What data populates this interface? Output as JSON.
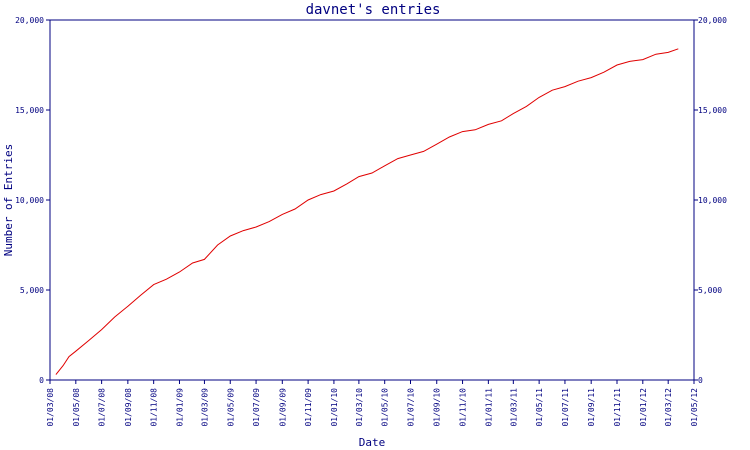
{
  "chart_data": {
    "type": "line",
    "title": "davnet's entries",
    "xlabel": "Date",
    "ylabel": "Number of Entries",
    "x_ticks": [
      "01/03/08",
      "01/05/08",
      "01/07/08",
      "01/09/08",
      "01/11/08",
      "01/01/09",
      "01/03/09",
      "01/05/09",
      "01/07/09",
      "01/09/09",
      "01/11/09",
      "01/01/10",
      "01/03/10",
      "01/05/10",
      "01/07/10",
      "01/09/10",
      "01/11/10",
      "01/01/11",
      "01/03/11",
      "01/05/11",
      "01/07/11",
      "01/09/11",
      "01/11/11",
      "01/01/12",
      "01/03/12",
      "01/05/12"
    ],
    "y_ticks": [
      "0",
      "5,000",
      "10,000",
      "15,000",
      "20,000"
    ],
    "ylim": [
      0,
      20000
    ],
    "grid": false,
    "legend": "none",
    "line_color": "#e00000",
    "series": [
      {
        "x": [
          "2008-03-15",
          "2008-04-01",
          "2008-04-15",
          "2008-05-01",
          "2008-06-01",
          "2008-07-01",
          "2008-08-01",
          "2008-09-01",
          "2008-10-01",
          "2008-11-01",
          "2008-12-01",
          "2009-01-01",
          "2009-02-01",
          "2009-03-01",
          "2009-04-01",
          "2009-05-01",
          "2009-06-01",
          "2009-07-01",
          "2009-08-01",
          "2009-09-01",
          "2009-10-01",
          "2009-11-01",
          "2009-12-01",
          "2010-01-01",
          "2010-02-01",
          "2010-03-01",
          "2010-04-01",
          "2010-05-01",
          "2010-06-01",
          "2010-07-01",
          "2010-08-01",
          "2010-09-01",
          "2010-10-01",
          "2010-11-01",
          "2010-12-01",
          "2011-01-01",
          "2011-02-01",
          "2011-03-01",
          "2011-04-01",
          "2011-05-01",
          "2011-06-01",
          "2011-07-01",
          "2011-08-01",
          "2011-09-01",
          "2011-10-01",
          "2011-11-01",
          "2011-12-01",
          "2012-01-01",
          "2012-02-01",
          "2012-03-01",
          "2012-03-25"
        ],
        "values": [
          300,
          800,
          1300,
          1600,
          2200,
          2800,
          3500,
          4100,
          4700,
          5300,
          5600,
          6000,
          6500,
          6700,
          7500,
          8000,
          8300,
          8500,
          8800,
          9200,
          9500,
          10000,
          10300,
          10500,
          10900,
          11300,
          11500,
          11900,
          12300,
          12500,
          12700,
          13100,
          13500,
          13800,
          13900,
          14200,
          14400,
          14800,
          15200,
          15700,
          16100,
          16300,
          16600,
          16800,
          17100,
          17500,
          17700,
          17800,
          18100,
          18200,
          18400
        ]
      }
    ]
  }
}
